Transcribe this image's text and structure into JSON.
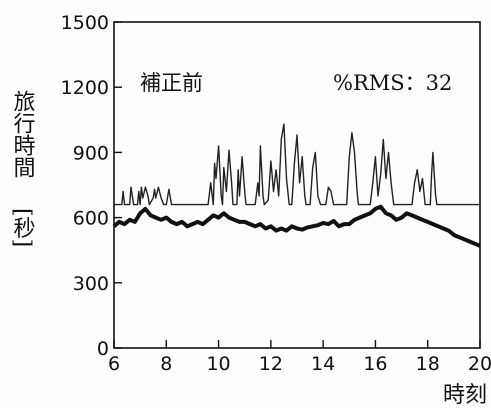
{
  "chart_data": {
    "type": "line",
    "annotations": {
      "left": "補正前",
      "right": "%RMS：32"
    },
    "ylabel": "旅行時間",
    "ylabel_unit": "[秒]",
    "xlabel": "時刻",
    "xlim": [
      6,
      20
    ],
    "ylim": [
      0,
      1500
    ],
    "x_ticks": [
      6,
      8,
      10,
      12,
      14,
      16,
      18,
      20
    ],
    "y_ticks": [
      0,
      300,
      600,
      900,
      1200,
      1500
    ],
    "grid": false,
    "series": [
      {
        "style": "thin",
        "color": "#222222",
        "points": [
          [
            6.0,
            660
          ],
          [
            6.3,
            660
          ],
          [
            6.35,
            720
          ],
          [
            6.4,
            660
          ],
          [
            6.6,
            660
          ],
          [
            6.65,
            740
          ],
          [
            6.75,
            660
          ],
          [
            6.9,
            660
          ],
          [
            6.95,
            720
          ],
          [
            7.0,
            660
          ],
          [
            7.05,
            740
          ],
          [
            7.1,
            690
          ],
          [
            7.2,
            740
          ],
          [
            7.3,
            700
          ],
          [
            7.35,
            660
          ],
          [
            7.5,
            690
          ],
          [
            7.55,
            730
          ],
          [
            7.6,
            690
          ],
          [
            7.7,
            740
          ],
          [
            7.8,
            690
          ],
          [
            7.9,
            660
          ],
          [
            8.0,
            660
          ],
          [
            8.1,
            730
          ],
          [
            8.2,
            660
          ],
          [
            9.6,
            660
          ],
          [
            9.7,
            760
          ],
          [
            9.8,
            660
          ],
          [
            9.85,
            850
          ],
          [
            9.9,
            780
          ],
          [
            10.0,
            930
          ],
          [
            10.1,
            700
          ],
          [
            10.15,
            660
          ],
          [
            10.2,
            830
          ],
          [
            10.3,
            720
          ],
          [
            10.4,
            910
          ],
          [
            10.5,
            760
          ],
          [
            10.55,
            660
          ],
          [
            10.7,
            660
          ],
          [
            10.75,
            820
          ],
          [
            10.8,
            700
          ],
          [
            10.9,
            880
          ],
          [
            11.0,
            720
          ],
          [
            11.05,
            660
          ],
          [
            11.4,
            660
          ],
          [
            11.5,
            760
          ],
          [
            11.55,
            700
          ],
          [
            11.6,
            930
          ],
          [
            11.7,
            700
          ],
          [
            11.75,
            660
          ],
          [
            11.9,
            680
          ],
          [
            12.0,
            860
          ],
          [
            12.1,
            720
          ],
          [
            12.2,
            820
          ],
          [
            12.3,
            700
          ],
          [
            12.4,
            960
          ],
          [
            12.5,
            1030
          ],
          [
            12.6,
            780
          ],
          [
            12.7,
            660
          ],
          [
            12.8,
            660
          ],
          [
            12.9,
            850
          ],
          [
            13.0,
            980
          ],
          [
            13.1,
            760
          ],
          [
            13.2,
            880
          ],
          [
            13.3,
            700
          ],
          [
            13.35,
            660
          ],
          [
            13.5,
            660
          ],
          [
            13.6,
            830
          ],
          [
            13.7,
            900
          ],
          [
            13.8,
            700
          ],
          [
            13.9,
            660
          ],
          [
            14.1,
            660
          ],
          [
            14.2,
            740
          ],
          [
            14.3,
            720
          ],
          [
            14.4,
            660
          ],
          [
            14.9,
            660
          ],
          [
            15.0,
            880
          ],
          [
            15.1,
            990
          ],
          [
            15.2,
            900
          ],
          [
            15.3,
            720
          ],
          [
            15.35,
            660
          ],
          [
            15.8,
            660
          ],
          [
            15.9,
            760
          ],
          [
            16.0,
            880
          ],
          [
            16.1,
            700
          ],
          [
            16.2,
            800
          ],
          [
            16.3,
            960
          ],
          [
            16.4,
            780
          ],
          [
            16.5,
            900
          ],
          [
            16.6,
            760
          ],
          [
            16.7,
            660
          ],
          [
            17.4,
            660
          ],
          [
            17.5,
            760
          ],
          [
            17.6,
            820
          ],
          [
            17.7,
            720
          ],
          [
            17.8,
            780
          ],
          [
            17.9,
            660
          ],
          [
            18.1,
            660
          ],
          [
            18.15,
            800
          ],
          [
            18.2,
            900
          ],
          [
            18.3,
            700
          ],
          [
            18.35,
            660
          ],
          [
            20.0,
            660
          ]
        ]
      },
      {
        "style": "thick",
        "color": "#111111",
        "points": [
          [
            6.0,
            560
          ],
          [
            6.2,
            580
          ],
          [
            6.4,
            570
          ],
          [
            6.6,
            590
          ],
          [
            6.8,
            580
          ],
          [
            7.0,
            620
          ],
          [
            7.2,
            640
          ],
          [
            7.4,
            610
          ],
          [
            7.6,
            600
          ],
          [
            7.8,
            590
          ],
          [
            8.0,
            600
          ],
          [
            8.2,
            580
          ],
          [
            8.4,
            570
          ],
          [
            8.6,
            580
          ],
          [
            8.8,
            560
          ],
          [
            9.0,
            570
          ],
          [
            9.2,
            580
          ],
          [
            9.4,
            570
          ],
          [
            9.6,
            590
          ],
          [
            9.8,
            610
          ],
          [
            10.0,
            600
          ],
          [
            10.2,
            620
          ],
          [
            10.4,
            600
          ],
          [
            10.6,
            590
          ],
          [
            10.8,
            580
          ],
          [
            11.0,
            580
          ],
          [
            11.2,
            570
          ],
          [
            11.4,
            560
          ],
          [
            11.6,
            570
          ],
          [
            11.8,
            550
          ],
          [
            12.0,
            560
          ],
          [
            12.2,
            540
          ],
          [
            12.4,
            550
          ],
          [
            12.6,
            540
          ],
          [
            12.8,
            560
          ],
          [
            13.0,
            550
          ],
          [
            13.2,
            545
          ],
          [
            13.4,
            555
          ],
          [
            13.6,
            560
          ],
          [
            13.8,
            565
          ],
          [
            14.0,
            575
          ],
          [
            14.2,
            570
          ],
          [
            14.4,
            585
          ],
          [
            14.6,
            560
          ],
          [
            14.8,
            570
          ],
          [
            15.0,
            570
          ],
          [
            15.2,
            590
          ],
          [
            15.4,
            600
          ],
          [
            15.6,
            610
          ],
          [
            15.8,
            620
          ],
          [
            16.0,
            640
          ],
          [
            16.2,
            650
          ],
          [
            16.4,
            620
          ],
          [
            16.6,
            610
          ],
          [
            16.8,
            590
          ],
          [
            17.0,
            600
          ],
          [
            17.2,
            620
          ],
          [
            17.4,
            610
          ],
          [
            17.6,
            600
          ],
          [
            17.8,
            590
          ],
          [
            18.0,
            580
          ],
          [
            18.2,
            570
          ],
          [
            18.4,
            560
          ],
          [
            18.6,
            550
          ],
          [
            18.8,
            540
          ],
          [
            19.0,
            520
          ],
          [
            19.2,
            510
          ],
          [
            19.4,
            500
          ],
          [
            19.6,
            490
          ],
          [
            19.8,
            480
          ],
          [
            20.0,
            470
          ]
        ]
      }
    ]
  }
}
